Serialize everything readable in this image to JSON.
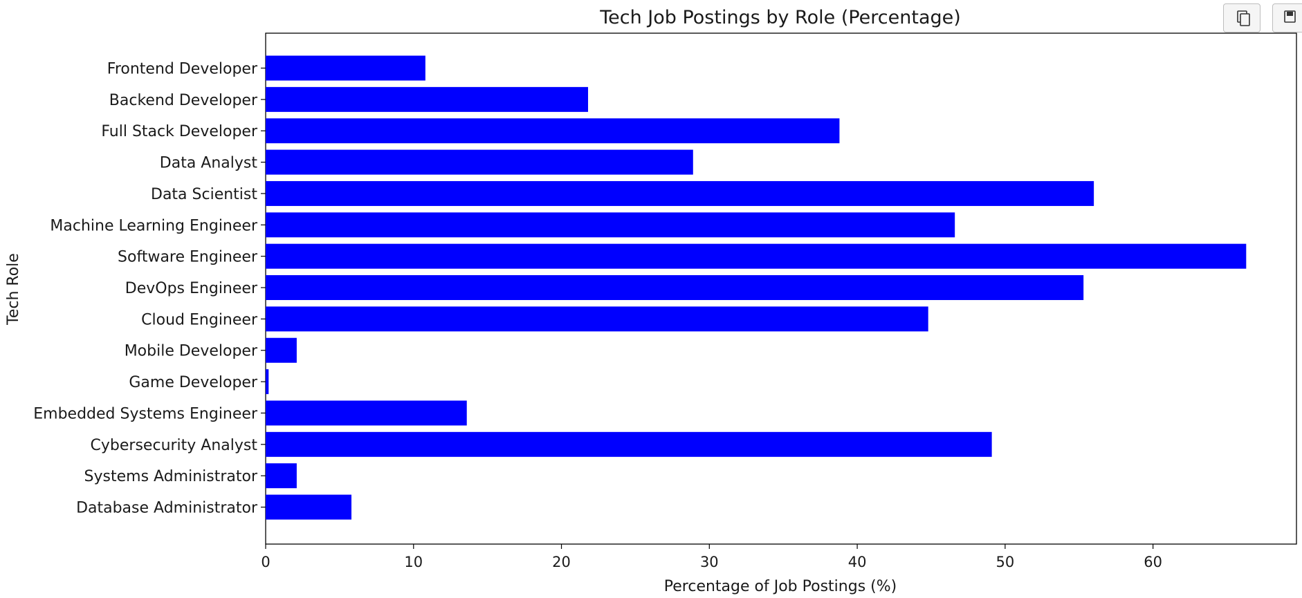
{
  "toolbar": {
    "copy_icon": "copy-icon",
    "save_icon": "floppy-disk-icon"
  },
  "chart_data": {
    "type": "bar",
    "orientation": "horizontal",
    "title": "Tech Job Postings by Role (Percentage)",
    "xlabel": "Percentage of Job Postings (%)",
    "ylabel": "Tech Role",
    "categories": [
      "Frontend Developer",
      "Backend Developer",
      "Full Stack Developer",
      "Data Analyst",
      "Data Scientist",
      "Machine Learning Engineer",
      "Software Engineer",
      "DevOps Engineer",
      "Cloud Engineer",
      "Mobile Developer",
      "Game Developer",
      "Embedded Systems Engineer",
      "Cybersecurity Analyst",
      "Systems Administrator",
      "Database Administrator"
    ],
    "values": [
      10.8,
      21.8,
      38.8,
      28.9,
      56.0,
      46.6,
      66.3,
      55.3,
      44.8,
      2.1,
      0.2,
      13.6,
      49.1,
      2.1,
      5.8
    ],
    "xlim": [
      0,
      69.7
    ],
    "xticks": [
      0,
      10,
      20,
      30,
      40,
      50,
      60
    ],
    "bar_color": "#0000ff",
    "grid": false,
    "legend": "none"
  }
}
